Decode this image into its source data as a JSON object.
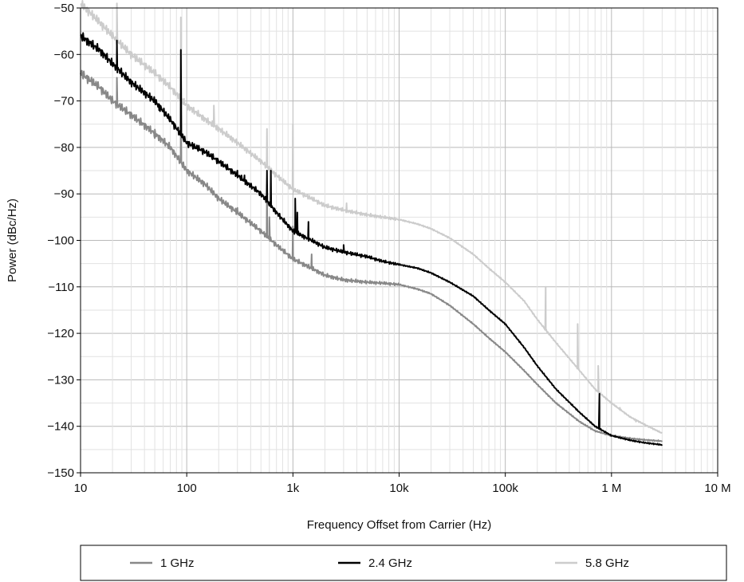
{
  "chart_data": {
    "type": "line",
    "xlabel": "Frequency Offset from Carrier (Hz)",
    "ylabel": "Power (dBc/Hz)",
    "x_scale": "log",
    "xlim": [
      10,
      10000000
    ],
    "ylim": [
      -150,
      -50
    ],
    "x_ticks": [
      {
        "value": 10,
        "label": "10"
      },
      {
        "value": 100,
        "label": "100"
      },
      {
        "value": 1000,
        "label": "1k"
      },
      {
        "value": 10000,
        "label": "10k"
      },
      {
        "value": 100000,
        "label": "100k"
      },
      {
        "value": 1000000,
        "label": "1 M"
      },
      {
        "value": 10000000,
        "label": "10 M"
      }
    ],
    "y_ticks": [
      {
        "value": -50,
        "label": "−50"
      },
      {
        "value": -60,
        "label": "−60"
      },
      {
        "value": -70,
        "label": "−70"
      },
      {
        "value": -80,
        "label": "−80"
      },
      {
        "value": -90,
        "label": "−90"
      },
      {
        "value": -100,
        "label": "−100"
      },
      {
        "value": -110,
        "label": "−110"
      },
      {
        "value": -120,
        "label": "−120"
      },
      {
        "value": -130,
        "label": "−130"
      },
      {
        "value": -140,
        "label": "−140"
      },
      {
        "value": -150,
        "label": "−150"
      }
    ],
    "grid": true,
    "legend_position": "bottom",
    "series": [
      {
        "name": "1 GHz",
        "color": "#888888",
        "x": [
          10,
          15,
          20,
          30,
          50,
          70,
          100,
          150,
          200,
          300,
          500,
          700,
          1000,
          1500,
          2000,
          3000,
          5000,
          7000,
          10000,
          15000,
          20000,
          30000,
          50000,
          70000,
          100000,
          150000,
          200000,
          300000,
          500000,
          700000,
          1000000,
          1500000,
          2000000,
          3000000
        ],
        "y": [
          -64,
          -67,
          -70,
          -73,
          -77,
          -80,
          -85,
          -88,
          -91,
          -94,
          -98,
          -101,
          -104,
          -106,
          -107.5,
          -108.5,
          -109,
          -109.2,
          -109.5,
          -110.5,
          -111.5,
          -114,
          -118,
          -121,
          -124,
          -128,
          -131,
          -135,
          -139,
          -141,
          -142,
          -142.6,
          -142.9,
          -143.2
        ],
        "spikes": [
          [
            22,
            -65
          ],
          [
            50,
            -78
          ],
          [
            88,
            -67
          ],
          [
            300,
            -93
          ],
          [
            570,
            -88
          ],
          [
            600,
            -95
          ],
          [
            1000,
            -97
          ],
          [
            1500,
            -103
          ]
        ]
      },
      {
        "name": "2.4 GHz",
        "color": "#000000",
        "x": [
          10,
          15,
          20,
          30,
          50,
          70,
          100,
          150,
          200,
          300,
          500,
          700,
          1000,
          1500,
          2000,
          3000,
          5000,
          7000,
          10000,
          15000,
          20000,
          30000,
          50000,
          70000,
          100000,
          150000,
          200000,
          300000,
          500000,
          700000,
          1000000,
          1500000,
          2000000,
          3000000
        ],
        "y": [
          -56,
          -59,
          -62,
          -66,
          -70,
          -74,
          -79,
          -81,
          -83,
          -86,
          -90,
          -94,
          -98,
          -100,
          -101.5,
          -102.5,
          -103.5,
          -104.5,
          -105.2,
          -106,
          -107,
          -109,
          -112,
          -115,
          -118,
          -123,
          -127,
          -132,
          -137,
          -140,
          -142,
          -143,
          -143.5,
          -144
        ],
        "spikes": [
          [
            22,
            -57
          ],
          [
            55,
            -72
          ],
          [
            88,
            -59
          ],
          [
            300,
            -85
          ],
          [
            350,
            -86
          ],
          [
            570,
            -85
          ],
          [
            620,
            -85
          ],
          [
            1050,
            -91
          ],
          [
            1100,
            -94
          ],
          [
            1400,
            -96
          ],
          [
            3000,
            -101
          ],
          [
            4000,
            -103
          ],
          [
            770000,
            -133
          ]
        ]
      },
      {
        "name": "5.8 GHz",
        "color": "#cccccc",
        "x": [
          10,
          15,
          20,
          30,
          50,
          70,
          100,
          150,
          200,
          300,
          500,
          700,
          1000,
          1500,
          2000,
          3000,
          5000,
          7000,
          10000,
          15000,
          20000,
          30000,
          50000,
          70000,
          100000,
          150000,
          200000,
          300000,
          500000,
          700000,
          1000000,
          1500000,
          2000000,
          3000000
        ],
        "y": [
          -49,
          -53,
          -56,
          -60,
          -64,
          -67,
          -71,
          -74,
          -76,
          -79,
          -83,
          -86,
          -89,
          -91,
          -92.5,
          -93.5,
          -94.5,
          -95,
          -95.5,
          -96.5,
          -97.5,
          -99.5,
          -103,
          -106,
          -109,
          -113,
          -117,
          -122,
          -128,
          -132,
          -135,
          -138,
          -139.5,
          -141.5
        ],
        "spikes": [
          [
            22,
            -49
          ],
          [
            88,
            -52
          ],
          [
            180,
            -71
          ],
          [
            570,
            -76
          ],
          [
            1000,
            -75
          ],
          [
            3200,
            -92
          ],
          [
            240000,
            -110
          ],
          [
            480000,
            -118
          ],
          [
            750000,
            -127
          ],
          [
            1200000,
            -136
          ],
          [
            1700000,
            -139
          ]
        ]
      }
    ]
  }
}
